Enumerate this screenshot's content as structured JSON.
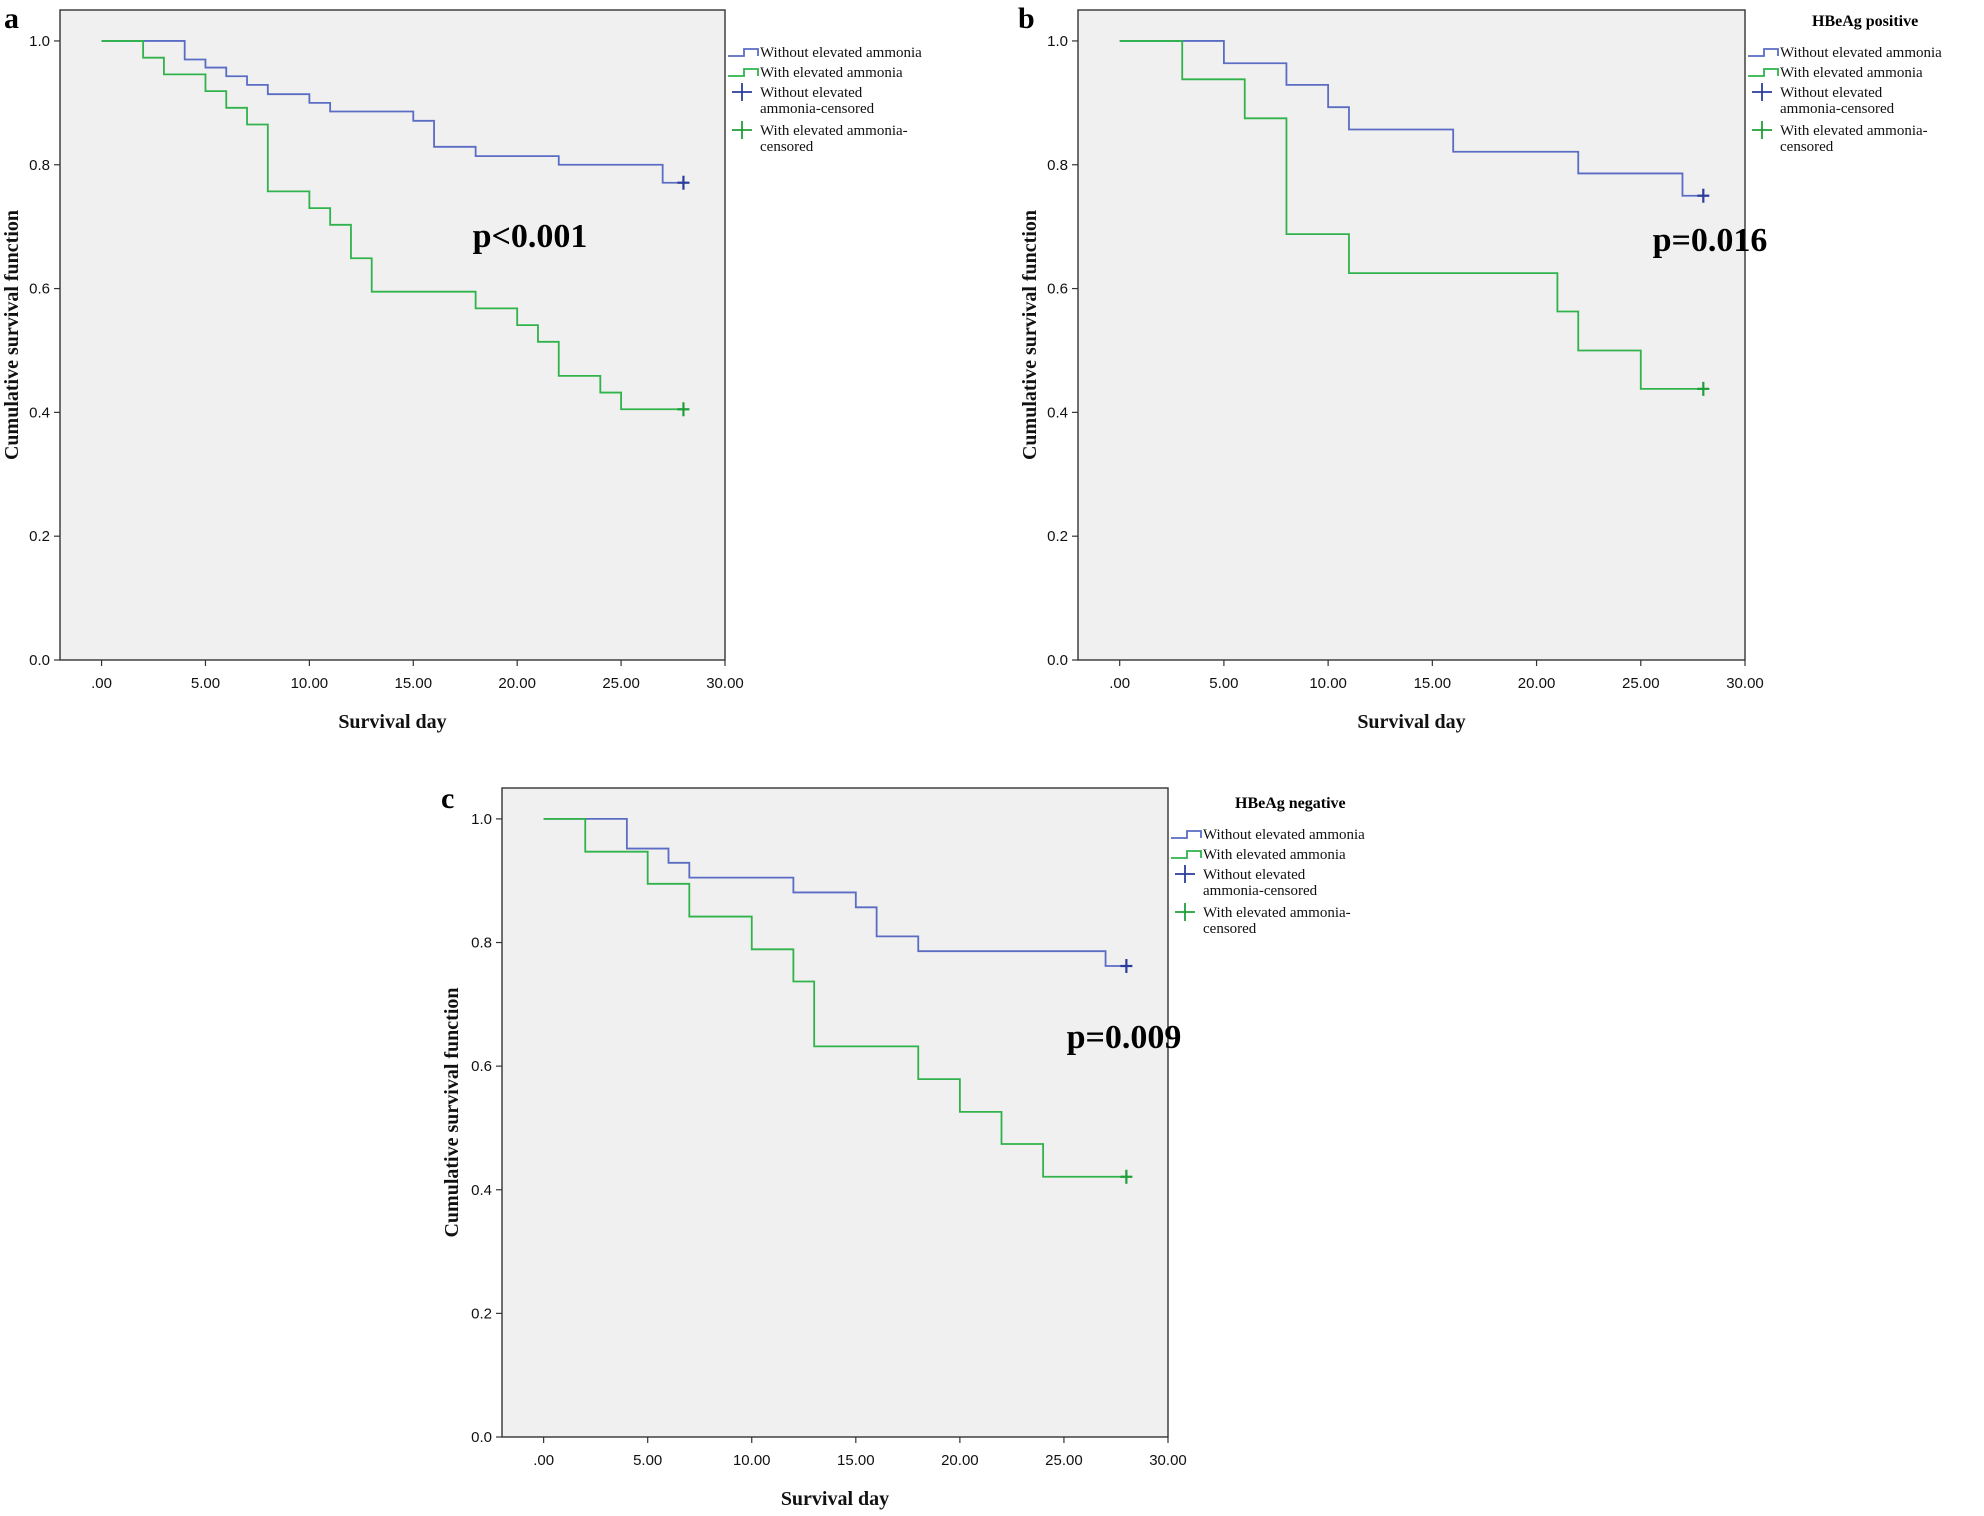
{
  "figure": {
    "colors": {
      "without": "#5b6cc4",
      "with": "#2fb34a",
      "censor_without": "#2b3c9c",
      "censor_with": "#1f9e38"
    }
  },
  "chart_data": [
    {
      "type": "line",
      "panel_letter": "a",
      "legend_title": "",
      "p_value_label": "p<0.001",
      "xlabel": "Survival day",
      "ylabel": "Cumulative survival function",
      "xlim": [
        -2,
        30
      ],
      "ylim": [
        0,
        1.05
      ],
      "x_ticks": [
        ".00",
        "5.00",
        "10.00",
        "15.00",
        "20.00",
        "25.00",
        "30.00"
      ],
      "y_ticks": [
        "0.0",
        "0.2",
        "0.4",
        "0.6",
        "0.8",
        "1.0"
      ],
      "legend": [
        "Without elevated ammonia",
        "With elevated ammonia",
        "Without elevated ammonia-censored",
        "With elevated ammonia-censored"
      ],
      "series": [
        {
          "name": "Without elevated ammonia",
          "steps": [
            [
              0,
              1.0
            ],
            [
              4,
              0.97
            ],
            [
              5,
              0.957
            ],
            [
              6,
              0.943
            ],
            [
              7,
              0.929
            ],
            [
              8,
              0.914
            ],
            [
              10,
              0.9
            ],
            [
              11,
              0.886
            ],
            [
              15,
              0.871
            ],
            [
              16,
              0.829
            ],
            [
              18,
              0.814
            ],
            [
              22,
              0.8
            ],
            [
              27,
              0.771
            ],
            [
              28,
              0.771
            ]
          ],
          "censor": [
            [
              28,
              0.771
            ]
          ]
        },
        {
          "name": "With elevated ammonia",
          "steps": [
            [
              0,
              1.0
            ],
            [
              2,
              0.973
            ],
            [
              3,
              0.946
            ],
            [
              5,
              0.919
            ],
            [
              6,
              0.892
            ],
            [
              7,
              0.865
            ],
            [
              8,
              0.757
            ],
            [
              10,
              0.73
            ],
            [
              11,
              0.703
            ],
            [
              12,
              0.649
            ],
            [
              13,
              0.595
            ],
            [
              18,
              0.568
            ],
            [
              20,
              0.541
            ],
            [
              21,
              0.514
            ],
            [
              22,
              0.459
            ],
            [
              24,
              0.432
            ],
            [
              25,
              0.405
            ],
            [
              28,
              0.405
            ]
          ],
          "censor": [
            [
              28,
              0.405
            ]
          ]
        }
      ]
    },
    {
      "type": "line",
      "panel_letter": "b",
      "legend_title": "HBeAg positive",
      "p_value_label": "p=0.016",
      "xlabel": "Survival day",
      "ylabel": "Cumulative survival function",
      "xlim": [
        -2,
        30
      ],
      "ylim": [
        0,
        1.05
      ],
      "x_ticks": [
        ".00",
        "5.00",
        "10.00",
        "15.00",
        "20.00",
        "25.00",
        "30.00"
      ],
      "y_ticks": [
        "0.0",
        "0.2",
        "0.4",
        "0.6",
        "0.8",
        "1.0"
      ],
      "legend": [
        "Without elevated ammonia",
        "With elevated ammonia",
        "Without elevated ammonia-censored",
        "With elevated ammonia-censored"
      ],
      "series": [
        {
          "name": "Without elevated ammonia",
          "steps": [
            [
              0,
              1.0
            ],
            [
              5,
              0.964
            ],
            [
              8,
              0.929
            ],
            [
              10,
              0.893
            ],
            [
              11,
              0.857
            ],
            [
              16,
              0.821
            ],
            [
              22,
              0.786
            ],
            [
              27,
              0.75
            ],
            [
              28,
              0.75
            ]
          ],
          "censor": [
            [
              28,
              0.75
            ]
          ]
        },
        {
          "name": "With elevated ammonia",
          "steps": [
            [
              0,
              1.0
            ],
            [
              3,
              0.938
            ],
            [
              6,
              0.875
            ],
            [
              8,
              0.688
            ],
            [
              11,
              0.625
            ],
            [
              21,
              0.563
            ],
            [
              22,
              0.5
            ],
            [
              25,
              0.438
            ],
            [
              28,
              0.438
            ]
          ],
          "censor": [
            [
              28,
              0.438
            ]
          ]
        }
      ]
    },
    {
      "type": "line",
      "panel_letter": "c",
      "legend_title": "HBeAg  negative",
      "p_value_label": "p=0.009",
      "xlabel": "Survival day",
      "ylabel": "Cumulative survival function",
      "xlim": [
        -2,
        30
      ],
      "ylim": [
        0,
        1.05
      ],
      "x_ticks": [
        ".00",
        "5.00",
        "10.00",
        "15.00",
        "20.00",
        "25.00",
        "30.00"
      ],
      "y_ticks": [
        "0.0",
        "0.2",
        "0.4",
        "0.6",
        "0.8",
        "1.0"
      ],
      "legend": [
        "Without elevated ammonia",
        "With elevated ammonia",
        "Without elevated ammonia-censored",
        "With elevated ammonia-censored"
      ],
      "series": [
        {
          "name": "Without elevated ammonia",
          "steps": [
            [
              0,
              1.0
            ],
            [
              4,
              0.952
            ],
            [
              6,
              0.929
            ],
            [
              7,
              0.905
            ],
            [
              12,
              0.881
            ],
            [
              15,
              0.857
            ],
            [
              16,
              0.81
            ],
            [
              18,
              0.786
            ],
            [
              27,
              0.762
            ],
            [
              28,
              0.762
            ]
          ],
          "censor": [
            [
              28,
              0.762
            ]
          ]
        },
        {
          "name": "With elevated ammonia",
          "steps": [
            [
              0,
              1.0
            ],
            [
              2,
              0.947
            ],
            [
              5,
              0.895
            ],
            [
              7,
              0.842
            ],
            [
              10,
              0.789
            ],
            [
              12,
              0.737
            ],
            [
              13,
              0.632
            ],
            [
              18,
              0.579
            ],
            [
              20,
              0.526
            ],
            [
              22,
              0.474
            ],
            [
              24,
              0.421
            ],
            [
              28,
              0.421
            ]
          ],
          "censor": [
            [
              28,
              0.421
            ]
          ]
        }
      ]
    }
  ]
}
